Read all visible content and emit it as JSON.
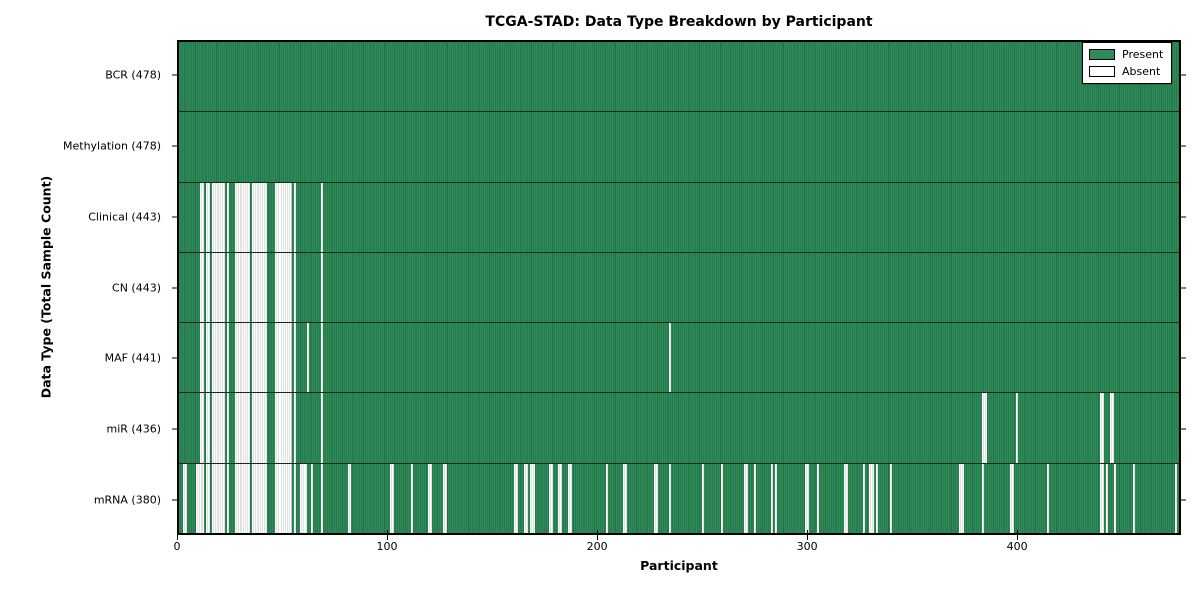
{
  "title": "TCGA-STAD: Data Type Breakdown by Participant",
  "legend": {
    "present_label": "Present",
    "absent_label": "Absent"
  },
  "colors": {
    "present": "#2e8b57",
    "present_edge": "#1f6e45",
    "absent": "#ffffff",
    "absent_edge": "#c6c6c6",
    "text": "#000000"
  },
  "chart_data": {
    "type": "heatmap",
    "title": "TCGA-STAD: Data Type Breakdown by Participant",
    "xlabel": "Participant",
    "ylabel": "Data Type (Total Sample Count)",
    "legend_entries": [
      "Present",
      "Absent"
    ],
    "legend_position": "upper right",
    "n_participants": 478,
    "xlim": [
      0,
      478
    ],
    "x_ticks": [
      0,
      100,
      200,
      300,
      400
    ],
    "grid": false,
    "cell_states": "present=green, absent=white; one column per participant",
    "rows": [
      {
        "label": "BCR (478)",
        "data_type": "BCR",
        "total": 478,
        "absent": []
      },
      {
        "label": "Methylation (478)",
        "data_type": "Methylation",
        "total": 478,
        "absent": []
      },
      {
        "label": "Clinical (443)",
        "data_type": "Clinical",
        "total": 443,
        "absent": [
          10,
          11,
          13,
          14,
          16,
          17,
          18,
          19,
          20,
          21,
          23,
          27,
          28,
          29,
          30,
          31,
          32,
          33,
          35,
          36,
          37,
          38,
          39,
          40,
          41,
          46,
          47,
          48,
          49,
          50,
          51,
          52,
          53,
          55,
          68
        ]
      },
      {
        "label": "CN (443)",
        "data_type": "CN",
        "total": 443,
        "absent": [
          10,
          11,
          13,
          14,
          16,
          17,
          18,
          19,
          20,
          21,
          23,
          27,
          28,
          29,
          30,
          31,
          32,
          33,
          35,
          36,
          37,
          38,
          39,
          40,
          41,
          46,
          47,
          48,
          49,
          50,
          51,
          52,
          53,
          55,
          68
        ]
      },
      {
        "label": "MAF (441)",
        "data_type": "MAF",
        "total": 441,
        "absent": [
          10,
          11,
          13,
          14,
          16,
          17,
          18,
          19,
          20,
          21,
          23,
          27,
          28,
          29,
          30,
          31,
          32,
          33,
          35,
          36,
          37,
          38,
          39,
          40,
          41,
          46,
          47,
          48,
          49,
          50,
          51,
          52,
          53,
          55,
          61,
          68,
          234
        ]
      },
      {
        "label": "miR (436)",
        "data_type": "miR",
        "total": 436,
        "absent": [
          10,
          11,
          13,
          14,
          16,
          17,
          18,
          19,
          20,
          21,
          23,
          27,
          28,
          29,
          30,
          31,
          32,
          33,
          35,
          36,
          37,
          38,
          39,
          40,
          41,
          46,
          47,
          48,
          49,
          50,
          51,
          52,
          53,
          55,
          68,
          384,
          385,
          400,
          440,
          441,
          445,
          446
        ]
      },
      {
        "label": "mRNA (380)",
        "data_type": "mRNA",
        "total": 380,
        "absent": [
          2,
          3,
          8,
          9,
          10,
          11,
          13,
          14,
          16,
          17,
          18,
          19,
          20,
          21,
          23,
          27,
          28,
          29,
          30,
          31,
          32,
          33,
          35,
          36,
          37,
          38,
          39,
          40,
          41,
          46,
          47,
          48,
          49,
          50,
          51,
          52,
          53,
          55,
          58,
          59,
          60,
          63,
          68,
          81,
          101,
          102,
          111,
          119,
          120,
          126,
          127,
          160,
          161,
          165,
          166,
          168,
          169,
          177,
          178,
          181,
          182,
          186,
          187,
          204,
          212,
          213,
          227,
          228,
          234,
          250,
          259,
          270,
          271,
          275,
          283,
          285,
          299,
          300,
          305,
          318,
          319,
          327,
          330,
          331,
          333,
          340,
          373,
          374,
          384,
          397,
          398,
          415,
          440,
          441,
          443,
          447,
          456,
          476
        ]
      }
    ]
  }
}
